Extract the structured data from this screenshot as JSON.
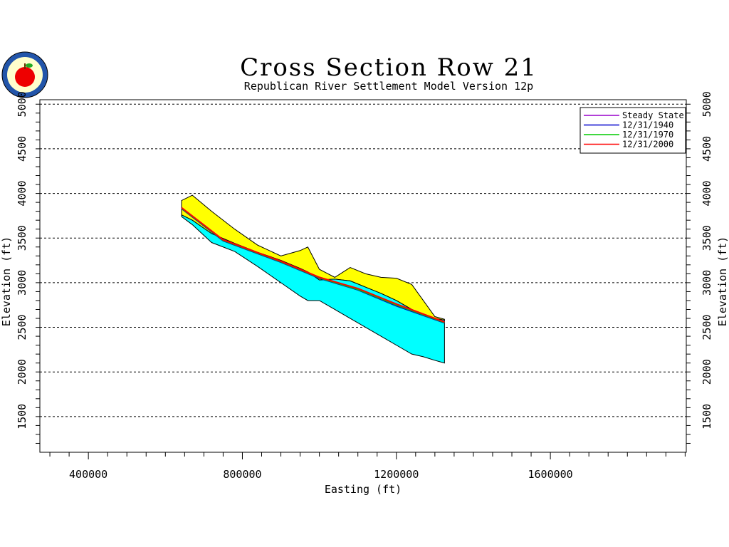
{
  "chart_data": {
    "type": "area",
    "title": "Cross Section Row 21",
    "subtitle": "Republican River Settlement Model Version 12p",
    "xlabel": "Easting (ft)",
    "ylabel": "Elevation (ft)",
    "ylabel_right": "Elevation (ft)",
    "xlim": [
      274000,
      1953000
    ],
    "ylim": [
      1100,
      5050
    ],
    "x_ticks": [
      400000,
      800000,
      1200000,
      1600000
    ],
    "y_ticks": [
      1500,
      2000,
      2500,
      3000,
      3500,
      4000,
      4500,
      5000
    ],
    "grid": "horizontal dashed",
    "legend_position": "top-right",
    "colors": {
      "upper_layer": "#ffff00",
      "lower_layer": "#00ffff",
      "steady_state": "#9900cc",
      "1940": "#0000cc",
      "1970": "#00cc00",
      "2000": "#ff0000"
    },
    "layers": {
      "x": [
        642000,
        670000,
        720000,
        780000,
        840000,
        900000,
        950000,
        970000,
        1000000,
        1040000,
        1080000,
        1120000,
        1160000,
        1200000,
        1240000,
        1270000,
        1300000,
        1325000
      ],
      "ground_surface": [
        3920,
        3980,
        3800,
        3600,
        3420,
        3300,
        3360,
        3400,
        3150,
        3060,
        3170,
        3100,
        3060,
        3050,
        2980,
        2800,
        2620,
        2590
      ],
      "layer_boundary": [
        3760,
        3700,
        3550,
        3440,
        3340,
        3250,
        3160,
        3120,
        3030,
        3040,
        3020,
        2950,
        2880,
        2800,
        2700,
        2650,
        2600,
        2580
      ],
      "aquifer_bottom": [
        3740,
        3650,
        3450,
        3350,
        3180,
        3000,
        2850,
        2800,
        2800,
        2700,
        2600,
        2500,
        2400,
        2300,
        2200,
        2170,
        2130,
        2100
      ]
    },
    "series": [
      {
        "name": "Steady State",
        "x": [
          642000,
          750000,
          900000,
          1000000,
          1100000,
          1200000,
          1325000
        ],
        "values": [
          3840,
          3480,
          3240,
          3060,
          2930,
          2760,
          2560
        ]
      },
      {
        "name": "12/31/1940",
        "x": [
          642000,
          750000,
          900000,
          1000000,
          1100000,
          1200000,
          1325000
        ],
        "values": [
          3830,
          3470,
          3230,
          3050,
          2920,
          2740,
          2550
        ]
      },
      {
        "name": "12/31/1970",
        "x": [
          642000,
          750000,
          900000,
          1000000,
          1100000,
          1200000,
          1325000
        ],
        "values": [
          3835,
          3475,
          3235,
          3055,
          2925,
          2750,
          2555
        ]
      },
      {
        "name": "12/31/2000",
        "x": [
          642000,
          750000,
          900000,
          1000000,
          1100000,
          1200000,
          1325000
        ],
        "values": [
          3840,
          3480,
          3240,
          3060,
          2935,
          2760,
          2560
        ]
      }
    ]
  },
  "logo": {
    "icon": "apple-seal-icon"
  }
}
